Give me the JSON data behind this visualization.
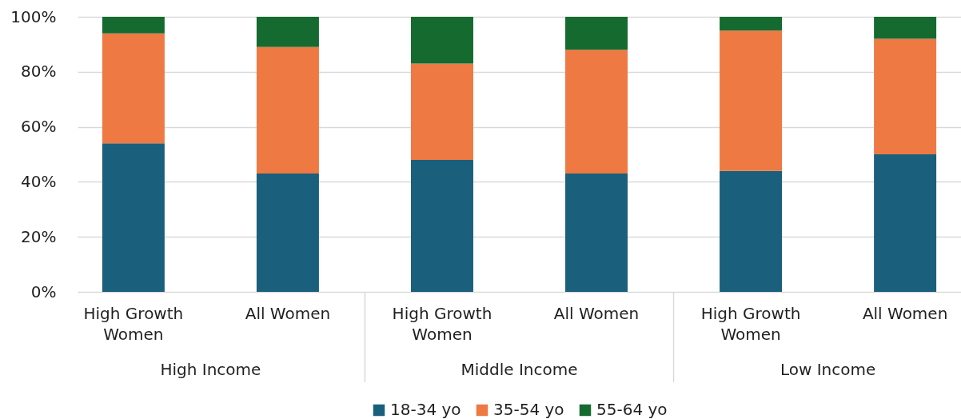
{
  "chart_data": {
    "type": "bar",
    "categories": [
      "High Growth Women",
      "All Women",
      "High Growth Women",
      "All Women",
      "High Growth Women",
      "All Women"
    ],
    "series": [
      {
        "name": "18-34 yo",
        "color": "#1a5f7c",
        "values": [
          54,
          43,
          48,
          43,
          44,
          50
        ]
      },
      {
        "name": "35-54 yo",
        "color": "#ee7942",
        "values": [
          40,
          46,
          35,
          45,
          51,
          42
        ]
      },
      {
        "name": "55-64 yo",
        "color": "#156b2f",
        "values": [
          6,
          11,
          17,
          12,
          5,
          8
        ]
      }
    ],
    "stacked": true,
    "ylim": [
      0,
      100
    ],
    "yticks": [
      {
        "value": 0,
        "label": "0%"
      },
      {
        "value": 20,
        "label": "20%"
      },
      {
        "value": 40,
        "label": "40%"
      },
      {
        "value": 60,
        "label": "60%"
      },
      {
        "value": 80,
        "label": "80%"
      },
      {
        "value": 100,
        "label": "100%"
      }
    ],
    "grid": "y",
    "legend": "bottom",
    "annotations": [
      "High Income",
      "Middle Income",
      "Low Income"
    ]
  }
}
